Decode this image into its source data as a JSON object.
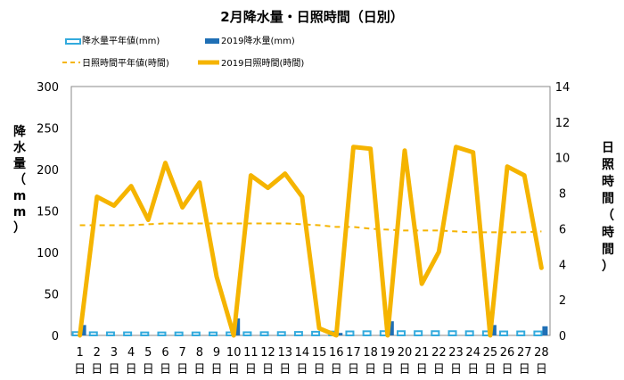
{
  "chart_data": {
    "type": "bar+line",
    "title": "2月降水量・日照時間（日別）",
    "categories": [
      "1",
      "2",
      "3",
      "4",
      "5",
      "6",
      "7",
      "8",
      "9",
      "10",
      "11",
      "12",
      "13",
      "14",
      "15",
      "16",
      "17",
      "18",
      "19",
      "20",
      "21",
      "22",
      "23",
      "24",
      "25",
      "26",
      "27",
      "28"
    ],
    "category_suffix": "日",
    "left_axis": {
      "label": "降水量（mm）",
      "ylim": [
        0,
        300
      ],
      "ticks": [
        0,
        50,
        100,
        150,
        200,
        250,
        300
      ]
    },
    "right_axis": {
      "label": "日照時間（時間）",
      "ylim": [
        0,
        14
      ],
      "ticks": [
        0,
        2,
        4,
        6,
        8,
        10,
        12,
        14
      ]
    },
    "grid": false,
    "legend_position": "top-left",
    "series": [
      {
        "name": "降水量平年値(mm)",
        "type": "bar",
        "style": "outline",
        "color": "#33aadd",
        "axis": "left",
        "values": [
          4.0,
          3.8,
          3.7,
          3.7,
          3.6,
          3.6,
          3.6,
          3.6,
          3.6,
          3.7,
          3.8,
          3.9,
          4.0,
          4.2,
          4.4,
          4.6,
          4.8,
          5.0,
          5.1,
          5.1,
          5.1,
          5.1,
          5.1,
          5.0,
          4.9,
          4.8,
          4.8,
          4.8
        ]
      },
      {
        "name": "2019降水量(mm)",
        "type": "bar",
        "style": "solid",
        "color": "#1f6fb5",
        "axis": "left",
        "values": [
          12.5,
          0,
          0,
          0,
          0,
          0,
          0,
          0,
          0,
          20.5,
          0,
          0,
          0,
          0,
          0,
          3,
          0,
          0,
          17,
          0,
          0,
          0,
          0,
          0,
          12.5,
          0,
          0,
          11
        ]
      },
      {
        "name": "日照時間平年値(時間)",
        "type": "line",
        "style": "dashed",
        "color": "#f5b400",
        "axis": "right",
        "values": [
          6.2,
          6.2,
          6.2,
          6.2,
          6.25,
          6.3,
          6.3,
          6.3,
          6.3,
          6.3,
          6.3,
          6.3,
          6.3,
          6.25,
          6.2,
          6.1,
          6.1,
          6.0,
          5.95,
          5.9,
          5.9,
          5.9,
          5.85,
          5.8,
          5.8,
          5.8,
          5.8,
          5.85
        ]
      },
      {
        "name": "2019日照時間(時間)",
        "type": "line",
        "style": "solid",
        "color": "#f5b400",
        "axis": "right",
        "values": [
          0,
          7.8,
          7.3,
          8.4,
          6.5,
          9.7,
          7.2,
          8.6,
          3.3,
          0,
          9.0,
          8.3,
          9.1,
          7.8,
          0.4,
          0,
          10.6,
          10.5,
          0,
          10.4,
          2.9,
          4.7,
          10.6,
          10.3,
          0,
          9.5,
          9.0,
          3.8
        ]
      }
    ]
  }
}
